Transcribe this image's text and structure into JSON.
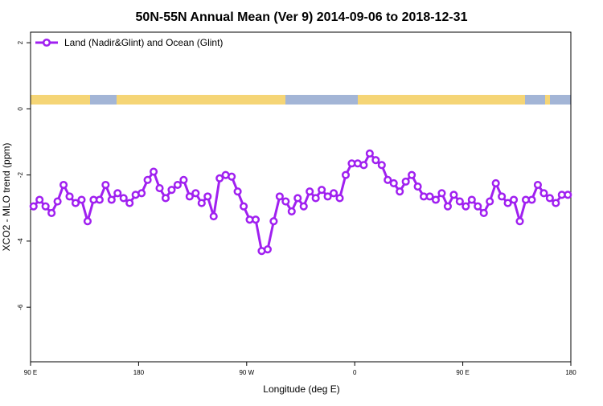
{
  "chart_data": {
    "type": "line",
    "title": "50N-55N Annual Mean (Ver 9)   2014-09-06 to 2018-12-31",
    "x_label": "Longitude (deg E)",
    "y_label": "XCO2 - MLO trend (ppm)",
    "x": [
      92.5,
      97.5,
      102.5,
      107.5,
      112.5,
      117.5,
      122.5,
      127.5,
      132.5,
      137.5,
      142.5,
      147.5,
      152.5,
      157.5,
      162.5,
      167.5,
      172.5,
      177.5,
      182.5,
      187.5,
      192.5,
      197.5,
      202.5,
      207.5,
      212.5,
      217.5,
      222.5,
      227.5,
      232.5,
      237.5,
      242.5,
      247.5,
      252.5,
      257.5,
      262.5,
      267.5,
      272.5,
      277.5,
      282.5,
      287.5,
      292.5,
      297.5,
      302.5,
      307.5,
      312.5,
      317.5,
      322.5,
      327.5,
      332.5,
      337.5,
      342.5,
      347.5,
      352.5,
      357.5,
      362.5,
      367.5,
      372.5,
      377.5,
      382.5,
      387.5,
      392.5,
      397.5,
      402.5,
      407.5,
      412.5,
      417.5,
      422.5,
      427.5,
      432.5,
      437.5,
      442.5,
      447.5,
      452.5,
      457.5,
      462.5,
      467.5,
      472.5,
      477.5,
      482.5,
      487.5,
      492.5,
      497.5,
      502.5,
      507.5,
      512.5,
      517.5,
      522.5,
      527.5,
      532.5,
      537.5
    ],
    "series": [
      {
        "name": "Land (Nadir&Glint) and Ocean (Glint)",
        "color": "#a020f0",
        "values": [
          -2.95,
          -2.75,
          -2.95,
          -3.15,
          -2.8,
          -2.3,
          -2.65,
          -2.85,
          -2.75,
          -3.4,
          -2.75,
          -2.75,
          -2.3,
          -2.75,
          -2.55,
          -2.7,
          -2.85,
          -2.6,
          -2.55,
          -2.15,
          -1.9,
          -2.4,
          -2.7,
          -2.45,
          -2.3,
          -2.15,
          -2.65,
          -2.55,
          -2.85,
          -2.65,
          -3.25,
          -2.1,
          -2.0,
          -2.05,
          -2.5,
          -2.95,
          -3.35,
          -3.35,
          -4.3,
          -4.25,
          -3.4,
          -2.65,
          -2.8,
          -3.1,
          -2.7,
          -2.95,
          -2.5,
          -2.7,
          -2.45,
          -2.65,
          -2.55,
          -2.7,
          -2.0,
          -1.65,
          -1.65,
          -1.7,
          -1.35,
          -1.55,
          -1.7,
          -2.15,
          -2.25,
          -2.5,
          -2.2,
          -2.0,
          -2.35,
          -2.65,
          -2.65,
          -2.75,
          -2.55,
          -2.95,
          -2.6,
          -2.8,
          -2.95,
          -2.75,
          -2.95,
          -3.15,
          -2.8,
          -2.25,
          -2.65,
          -2.85,
          -2.75,
          -3.4,
          -2.75,
          -2.75,
          -2.3,
          -2.55,
          -2.7,
          -2.85,
          -2.6,
          -2.6
        ]
      }
    ],
    "xlim": [
      90,
      540
    ],
    "xticks": [
      {
        "value": 90,
        "label": "90 E"
      },
      {
        "value": 180,
        "label": "180"
      },
      {
        "value": 270,
        "label": "90 W"
      },
      {
        "value": 360,
        "label": "0"
      },
      {
        "value": 450,
        "label": "90 E"
      },
      {
        "value": 540,
        "label": "180"
      }
    ],
    "ylim": [
      -7.65,
      2.32
    ],
    "yticks": [
      2,
      0,
      -2,
      -4,
      -6
    ],
    "legend": "top-left"
  }
}
